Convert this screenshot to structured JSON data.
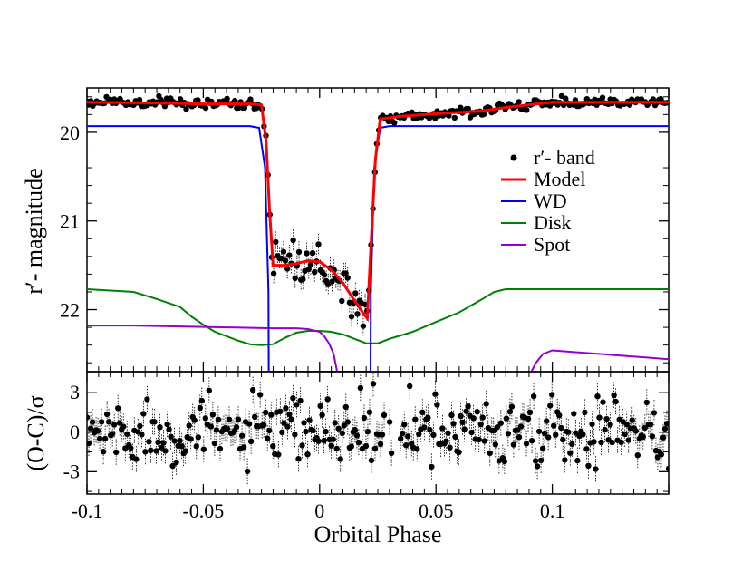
{
  "chart_data": [
    {
      "panel": "light-curve",
      "type": "line",
      "title": "",
      "xlabel": "",
      "ylabel": "r′- magnitude",
      "xlim": [
        -0.1,
        0.15
      ],
      "ylim": [
        22.7,
        19.5
      ],
      "y_inverted": true,
      "yticks": [
        20,
        21,
        22
      ],
      "ytick_labels": [
        "20",
        "21",
        "22"
      ],
      "legend_position": "right",
      "legend": [
        {
          "label": "r′- band",
          "color": "#000000",
          "kind": "point"
        },
        {
          "label": "Model",
          "color": "#ff0000",
          "kind": "line"
        },
        {
          "label": "WD",
          "color": "#0000ff",
          "kind": "line"
        },
        {
          "label": "Disk",
          "color": "#008000",
          "kind": "line"
        },
        {
          "label": "Spot",
          "color": "#9400d3",
          "kind": "line"
        }
      ],
      "series": [
        {
          "name": "Model",
          "color": "#ff0000",
          "x": [
            -0.1,
            -0.07,
            -0.05,
            -0.03,
            -0.025,
            -0.023,
            -0.0215,
            -0.02,
            -0.015,
            -0.01,
            -0.005,
            0.0,
            0.005,
            0.01,
            0.015,
            0.019,
            0.0205,
            0.022,
            0.024,
            0.026,
            0.035,
            0.05,
            0.07,
            0.08,
            0.1,
            0.12,
            0.15
          ],
          "y": [
            19.66,
            19.67,
            19.68,
            19.68,
            19.69,
            20.1,
            20.9,
            21.5,
            21.5,
            21.48,
            21.45,
            21.46,
            21.55,
            21.7,
            21.9,
            22.05,
            22.1,
            21.3,
            20.3,
            19.85,
            19.82,
            19.79,
            19.76,
            19.72,
            19.66,
            19.66,
            19.66
          ]
        },
        {
          "name": "WD",
          "color": "#0000ff",
          "x": [
            -0.1,
            -0.03,
            -0.026,
            -0.0235,
            -0.022,
            -0.0219,
            0.0219,
            0.022,
            0.0235,
            0.026,
            0.03,
            0.15
          ],
          "y": [
            19.93,
            19.93,
            19.95,
            20.4,
            21.8,
            22.7,
            22.7,
            21.8,
            20.4,
            19.95,
            19.93,
            19.93
          ]
        },
        {
          "name": "Disk",
          "color": "#008000",
          "x": [
            -0.1,
            -0.08,
            -0.07,
            -0.06,
            -0.055,
            -0.05,
            -0.045,
            -0.04,
            -0.035,
            -0.03,
            -0.025,
            -0.02,
            -0.015,
            -0.01,
            -0.005,
            0.0,
            0.005,
            0.01,
            0.015,
            0.02,
            0.025,
            0.03,
            0.04,
            0.05,
            0.06,
            0.07,
            0.075,
            0.08,
            0.1,
            0.15
          ],
          "y": [
            21.77,
            21.8,
            21.88,
            21.97,
            22.08,
            22.17,
            22.25,
            22.3,
            22.35,
            22.39,
            22.4,
            22.39,
            22.32,
            22.26,
            22.24,
            22.24,
            22.25,
            22.28,
            22.33,
            22.38,
            22.38,
            22.33,
            22.25,
            22.14,
            22.03,
            21.88,
            21.8,
            21.77,
            21.77,
            21.77
          ]
        },
        {
          "name": "Spot",
          "color": "#9400d3",
          "x": [
            -0.1,
            -0.08,
            -0.06,
            -0.04,
            -0.02,
            -0.01,
            -0.005,
            0.0,
            0.002,
            0.004,
            0.006,
            0.0075
          ],
          "y": [
            22.18,
            22.18,
            22.19,
            22.2,
            22.21,
            22.21,
            22.22,
            22.25,
            22.3,
            22.38,
            22.5,
            22.7
          ]
        },
        {
          "name": "Spot",
          "color": "#9400d3",
          "x": [
            0.091,
            0.093,
            0.096,
            0.1,
            0.105,
            0.11,
            0.12,
            0.13,
            0.14,
            0.15
          ],
          "y": [
            22.7,
            22.6,
            22.5,
            22.46,
            22.47,
            22.48,
            22.5,
            22.52,
            22.54,
            22.56
          ]
        }
      ],
      "observations": {
        "name": "r′- band",
        "color": "#000000",
        "x_range": [
          -0.1,
          0.15
        ],
        "count": 300,
        "follows": "Model",
        "scatter_mag": 0.03,
        "in_eclipse_scatter_mag": 0.13
      }
    },
    {
      "panel": "residuals",
      "type": "scatter",
      "title": "",
      "xlabel": "Orbital Phase",
      "ylabel": "(O-C)/σ",
      "xlim": [
        -0.1,
        0.15
      ],
      "ylim": [
        -4.7,
        4.6
      ],
      "yticks": [
        -3,
        0,
        3
      ],
      "ytick_labels": [
        "-3",
        "0",
        "3"
      ],
      "xticks": [
        -0.1,
        -0.05,
        0,
        0.05,
        0.1
      ],
      "xtick_labels": [
        "-0.1",
        "-0.05",
        "0",
        "0.05",
        "0.1"
      ],
      "series": [
        {
          "name": "residuals",
          "color": "#000000",
          "x_range": [
            -0.1,
            0.15
          ],
          "count": 320,
          "mean": 0,
          "std": 1.2,
          "range": [
            -3.5,
            3.8
          ]
        }
      ]
    }
  ]
}
